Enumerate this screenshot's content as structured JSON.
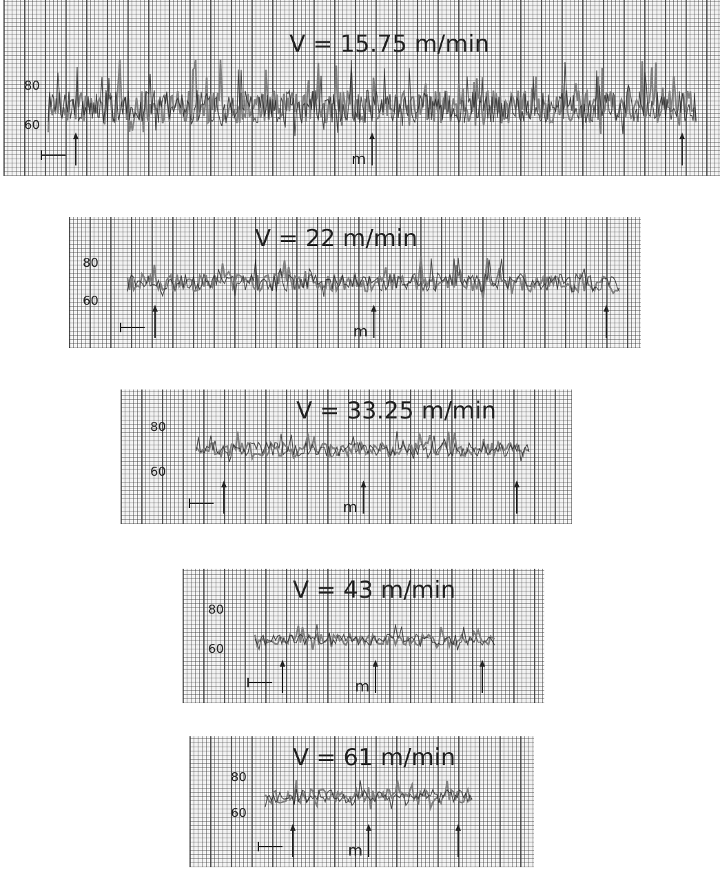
{
  "panels": [
    {
      "title": "V = 15.75 m/min",
      "y_labels": [
        "80",
        "60"
      ],
      "marker": "m"
    },
    {
      "title": "V = 22 m/min",
      "y_labels": [
        "80",
        "60"
      ],
      "marker": "m"
    },
    {
      "title": "V = 33.25 m/min",
      "y_labels": [
        "80",
        "60"
      ],
      "marker": "m"
    },
    {
      "title": "V = 43 m/min",
      "y_labels": [
        "80",
        "60"
      ],
      "marker": "m"
    },
    {
      "title": "V = 61 m/min",
      "y_labels": [
        "80",
        "60"
      ],
      "marker": "m"
    }
  ]
}
